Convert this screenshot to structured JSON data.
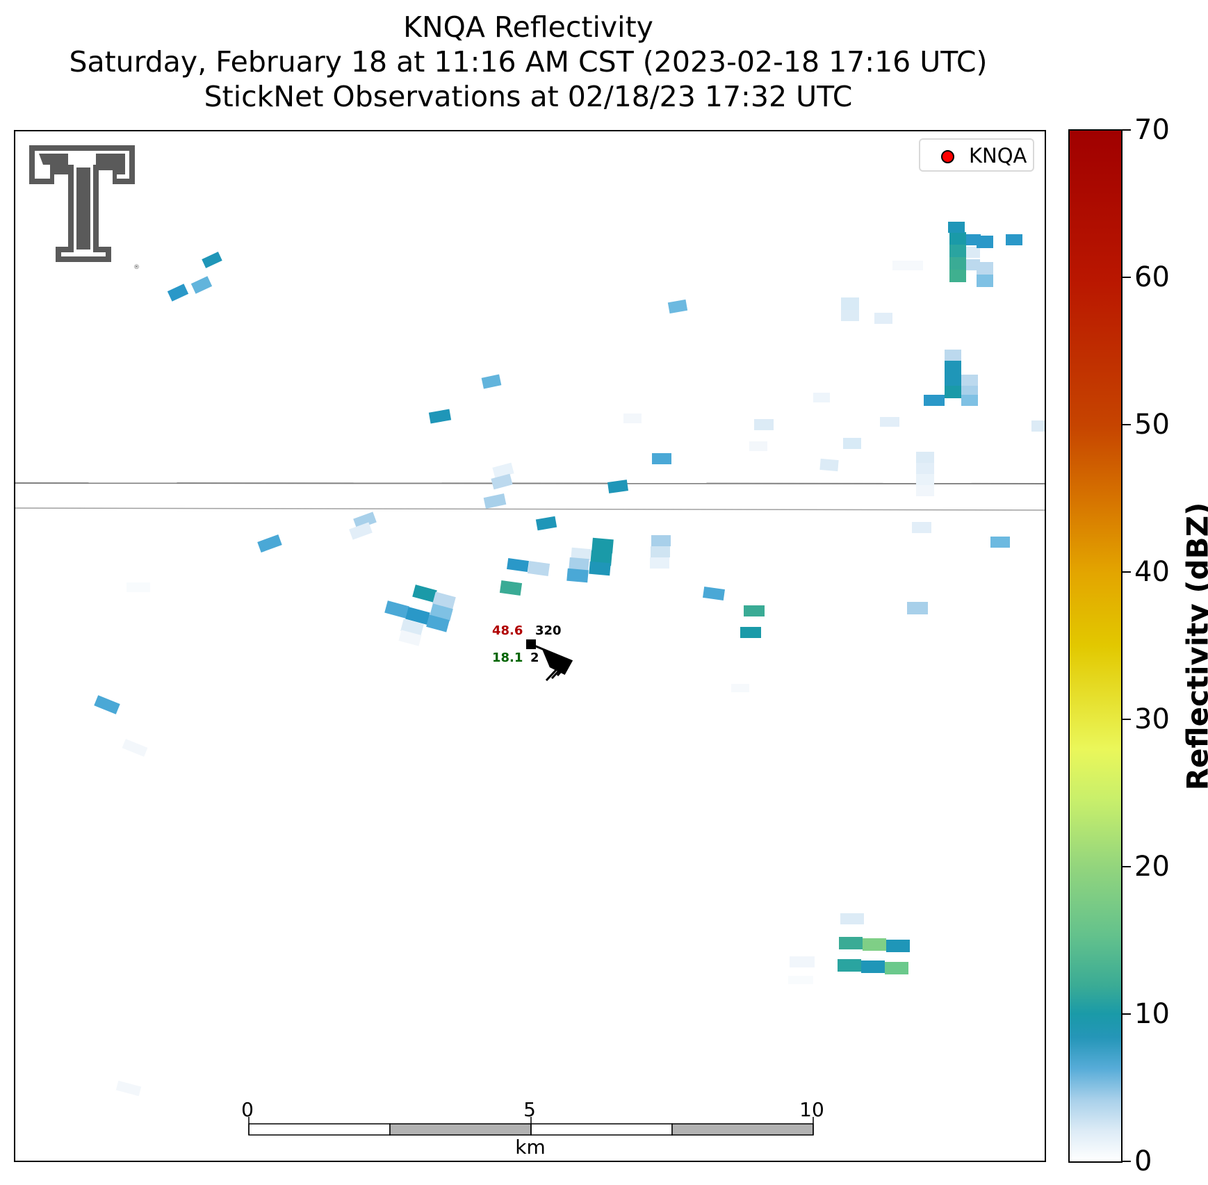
{
  "title": {
    "line1": "KNQA Reflectivity",
    "line2": "Saturday, February 18 at 11:16 AM CST (2023-02-18 17:16 UTC)",
    "line3": "StickNet Observations at 02/18/23 17:32 UTC"
  },
  "legend": {
    "label": "KNQA",
    "marker_color": "#ff0000"
  },
  "colorbar": {
    "label": "Reflectivity (dBZ)",
    "ticks": [
      "0",
      "10",
      "20",
      "30",
      "40",
      "50",
      "60",
      "70"
    ],
    "range": [
      0,
      70
    ]
  },
  "scale_bar": {
    "ticks": [
      "0",
      "5",
      "10"
    ],
    "unit": "km"
  },
  "station": {
    "temperature": "48.6",
    "temperature_color": "#b00000",
    "pressure": "320",
    "dewpoint": "18.1",
    "dewpoint_color": "#006400",
    "extra": "2"
  },
  "logo": {
    "name": "texas-tech-double-t-logo"
  }
}
